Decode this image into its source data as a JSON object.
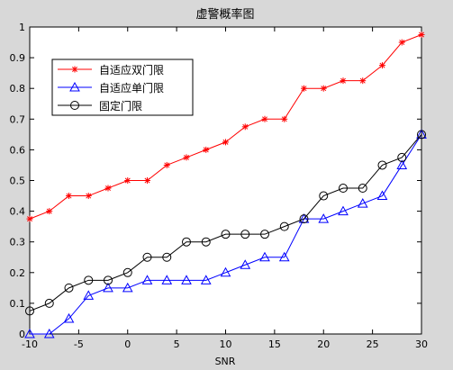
{
  "chart_data": {
    "type": "line",
    "title": "虚警概率图",
    "xlabel": "SNR",
    "ylabel": "",
    "xlim": [
      -10,
      30
    ],
    "ylim": [
      0,
      1
    ],
    "xticks": [
      -10,
      -5,
      0,
      5,
      10,
      15,
      20,
      25,
      30
    ],
    "yticks": [
      0,
      0.1,
      0.2,
      0.3,
      0.4,
      0.5,
      0.6,
      0.7,
      0.8,
      0.9,
      1
    ],
    "x": [
      -10,
      -8,
      -6,
      -4,
      -2,
      0,
      2,
      4,
      6,
      8,
      10,
      12,
      14,
      16,
      18,
      20,
      22,
      24,
      26,
      28,
      30
    ],
    "legend_position": "top-left",
    "grid": false,
    "series": [
      {
        "name": "自适应双门限",
        "color": "#ff0000",
        "marker": "star",
        "values": [
          0.375,
          0.4,
          0.45,
          0.45,
          0.475,
          0.5,
          0.5,
          0.55,
          0.575,
          0.6,
          0.625,
          0.675,
          0.7,
          0.7,
          0.8,
          0.8,
          0.825,
          0.825,
          0.875,
          0.95,
          0.975
        ]
      },
      {
        "name": "自适应单门限",
        "color": "#0000ff",
        "marker": "triangle",
        "values": [
          0.0,
          0.0,
          0.05,
          0.125,
          0.15,
          0.15,
          0.175,
          0.175,
          0.175,
          0.175,
          0.2,
          0.225,
          0.25,
          0.25,
          0.375,
          0.375,
          0.4,
          0.425,
          0.45,
          0.55,
          0.65
        ]
      },
      {
        "name": "固定门限",
        "color": "#000000",
        "marker": "circle",
        "values": [
          0.075,
          0.1,
          0.15,
          0.175,
          0.175,
          0.2,
          0.25,
          0.25,
          0.3,
          0.3,
          0.325,
          0.325,
          0.325,
          0.35,
          0.375,
          0.45,
          0.475,
          0.475,
          0.55,
          0.575,
          0.65
        ]
      }
    ]
  }
}
